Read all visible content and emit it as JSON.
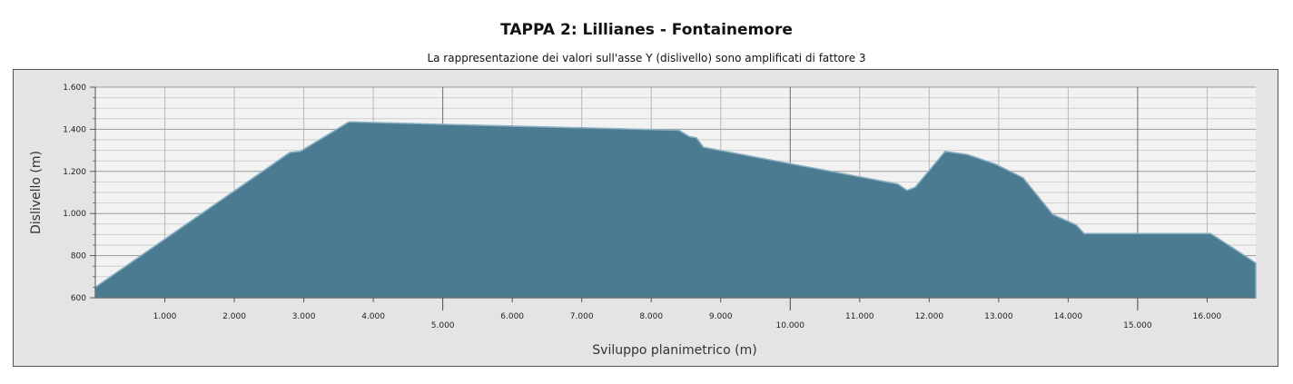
{
  "title": "TAPPA 2: Lillianes - Fontainemore",
  "subtitle": "La rappresentazione dei valori sull'asse Y (dislivello) sono amplificati di fattore 3",
  "chart_data": {
    "type": "area",
    "xlabel": "Sviluppo planimetrico (m)",
    "ylabel": "Dislivello (m)",
    "xlim": [
      0,
      16700
    ],
    "ylim": [
      600,
      1600
    ],
    "x_ticks_minor": [
      {
        "value": 1000,
        "label": "1.000"
      },
      {
        "value": 2000,
        "label": "2.000"
      },
      {
        "value": 3000,
        "label": "3.000"
      },
      {
        "value": 4000,
        "label": "4.000"
      },
      {
        "value": 6000,
        "label": "6.000"
      },
      {
        "value": 7000,
        "label": "7.000"
      },
      {
        "value": 8000,
        "label": "8.000"
      },
      {
        "value": 9000,
        "label": "9.000"
      },
      {
        "value": 11000,
        "label": "11.000"
      },
      {
        "value": 12000,
        "label": "12.000"
      },
      {
        "value": 13000,
        "label": "13.000"
      },
      {
        "value": 14000,
        "label": "14.000"
      },
      {
        "value": 16000,
        "label": "16.000"
      }
    ],
    "x_ticks_major": [
      {
        "value": 5000,
        "label": "5.000"
      },
      {
        "value": 10000,
        "label": "10.000"
      },
      {
        "value": 15000,
        "label": "15.000"
      }
    ],
    "y_ticks": [
      {
        "value": 600,
        "label": "600"
      },
      {
        "value": 800,
        "label": "800"
      },
      {
        "value": 1000,
        "label": "1.000"
      },
      {
        "value": 1200,
        "label": "1.200"
      },
      {
        "value": 1400,
        "label": "1.400"
      },
      {
        "value": 1600,
        "label": "1.600"
      }
    ],
    "x": [
      0,
      2800,
      2950,
      3650,
      8400,
      8550,
      8650,
      8750,
      11550,
      11680,
      11800,
      12230,
      12550,
      12950,
      13350,
      13780,
      14120,
      14230,
      14400,
      15500,
      16050,
      16450,
      16700
    ],
    "y": [
      650,
      1290,
      1295,
      1435,
      1395,
      1365,
      1360,
      1315,
      1140,
      1110,
      1125,
      1295,
      1280,
      1235,
      1170,
      995,
      945,
      905,
      905,
      905,
      905,
      820,
      765
    ],
    "fill_color": "#4a7b91",
    "line_color": "#8ab0c2",
    "plot_background": "#f2f2f2",
    "grid": true
  }
}
